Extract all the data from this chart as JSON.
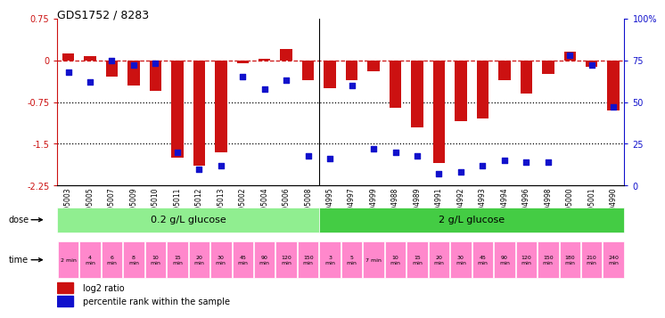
{
  "title": "GDS1752 / 8283",
  "samples": [
    "GSM95003",
    "GSM95005",
    "GSM95007",
    "GSM95009",
    "GSM95010",
    "GSM95011",
    "GSM95012",
    "GSM95013",
    "GSM95002",
    "GSM95004",
    "GSM95006",
    "GSM95008",
    "GSM94995",
    "GSM94997",
    "GSM94999",
    "GSM94988",
    "GSM94989",
    "GSM94991",
    "GSM94992",
    "GSM94993",
    "GSM94994",
    "GSM94996",
    "GSM94998",
    "GSM95000",
    "GSM95001",
    "GSM94990"
  ],
  "log2_ratio": [
    0.12,
    0.08,
    -0.3,
    -0.45,
    -0.55,
    -1.75,
    -1.9,
    -1.65,
    -0.05,
    0.02,
    0.2,
    -0.35,
    -0.5,
    -0.35,
    -0.2,
    -0.85,
    -1.2,
    -1.85,
    -1.1,
    -1.05,
    -0.35,
    -0.6,
    -0.25,
    0.15,
    -0.12,
    -0.9
  ],
  "percentile": [
    68,
    62,
    75,
    72,
    73,
    20,
    10,
    12,
    65,
    58,
    63,
    18,
    16,
    60,
    22,
    20,
    18,
    7,
    8,
    12,
    15,
    14,
    14,
    78,
    72,
    47
  ],
  "dose_labels": [
    "0.2 g/L glucose",
    "2 g/L glucose"
  ],
  "dose_split": 12,
  "time_labels_0_2": [
    "2 min",
    "4\nmin",
    "6\nmin",
    "8\nmin",
    "10\nmin",
    "15\nmin",
    "20\nmin",
    "30\nmin",
    "45\nmin",
    "90\nmin",
    "120\nmin",
    "150\nmin"
  ],
  "time_labels_2": [
    "3\nmin",
    "5\nmin",
    "7 min",
    "10\nmin",
    "15\nmin",
    "20\nmin",
    "30\nmin",
    "45\nmin",
    "90\nmin",
    "120\nmin",
    "150\nmin",
    "180\nmin",
    "210\nmin",
    "240\nmin"
  ],
  "ylim_left": [
    -2.25,
    0.75
  ],
  "ylim_right": [
    0,
    100
  ],
  "yticks_left": [
    0.75,
    0,
    -0.75,
    -1.5,
    -2.25
  ],
  "yticks_right": [
    100,
    75,
    50,
    25,
    0
  ],
  "hlines": [
    0,
    -0.75,
    -1.5
  ],
  "bar_color": "#cc1111",
  "dot_color": "#1111cc",
  "dose_color_0_2": "#90ee90",
  "dose_color_2": "#44cc44",
  "time_bg_color": "#ff88cc",
  "legend_red": "log2 ratio",
  "legend_blue": "percentile rank within the sample"
}
